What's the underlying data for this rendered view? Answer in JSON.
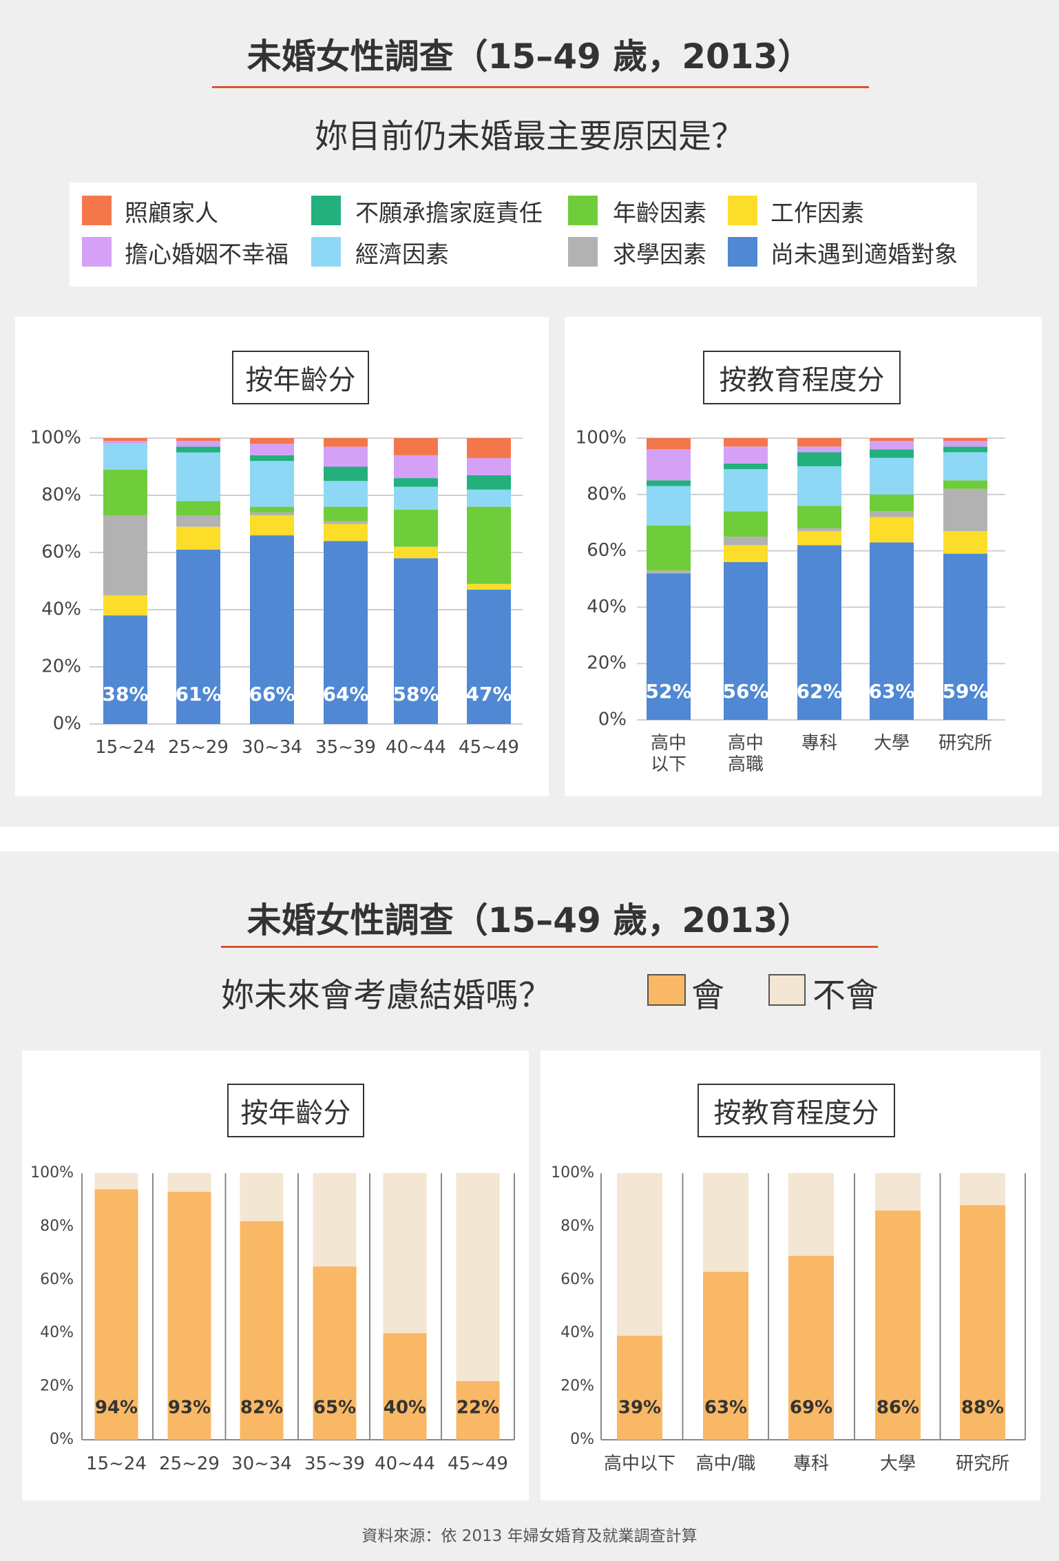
{
  "sections": [
    {
      "title": "未婚女性調查（15–49 歲，2013）",
      "question": "妳目前仍未婚最主要原因是？"
    },
    {
      "title": "未婚女性調查（15–49 歲，2013）",
      "question": "妳未來會考慮結婚嗎？"
    }
  ],
  "source": "資料來源：依 2013 年婦女婚育及就業調查計算",
  "chart_data": [
    {
      "type": "bar",
      "stacked": true,
      "title": "按年齡分",
      "categories": [
        "15~24",
        "25~29",
        "30~34",
        "35~39",
        "40~44",
        "45~49"
      ],
      "ylim": [
        0,
        100
      ],
      "yticks": [
        {
          "value": 0,
          "label": "0%"
        },
        {
          "value": 20,
          "label": "20%"
        },
        {
          "value": 40,
          "label": "40%"
        },
        {
          "value": 60,
          "label": "60%"
        },
        {
          "value": 80,
          "label": "80%"
        },
        {
          "value": 100,
          "label": "100%"
        }
      ],
      "grid": true,
      "series": [
        {
          "name": "尚未遇到適婚對象",
          "color": "#5088d3",
          "values": [
            38,
            61,
            66,
            64,
            58,
            47
          ],
          "value_labels": [
            "38%",
            "61%",
            "66%",
            "64%",
            "58%",
            "47%"
          ]
        },
        {
          "name": "工作因素",
          "color": "#fbdd2a",
          "values": [
            7,
            8,
            7,
            6,
            4,
            2
          ]
        },
        {
          "name": "求學因素",
          "color": "#b2b2b2",
          "values": [
            28,
            4,
            1,
            1,
            0,
            0
          ]
        },
        {
          "name": "年齡因素",
          "color": "#6fcc3a",
          "values": [
            16,
            5,
            2,
            5,
            13,
            27
          ]
        },
        {
          "name": "經濟因素",
          "color": "#8ed8f5",
          "values": [
            9,
            17,
            16,
            9,
            8,
            6
          ]
        },
        {
          "name": "不願承擔家庭責任",
          "color": "#23b07d",
          "values": [
            0,
            2,
            2,
            5,
            3,
            5
          ]
        },
        {
          "name": "擔心婚姻不幸福",
          "color": "#d4a1f7",
          "values": [
            1,
            2,
            4,
            7,
            8,
            6
          ]
        },
        {
          "name": "照顧家人",
          "color": "#f4774c",
          "values": [
            1,
            1,
            2,
            3,
            6,
            7
          ]
        }
      ]
    },
    {
      "type": "bar",
      "stacked": true,
      "title": "按教育程度分",
      "categories": [
        "高中\n以下",
        "高中\n高職",
        "專科",
        "大學",
        "研究所"
      ],
      "ylim": [
        0,
        100
      ],
      "yticks": [
        {
          "value": 0,
          "label": "0%"
        },
        {
          "value": 20,
          "label": "20%"
        },
        {
          "value": 40,
          "label": "40%"
        },
        {
          "value": 60,
          "label": "60%"
        },
        {
          "value": 80,
          "label": "80%"
        },
        {
          "value": 100,
          "label": "100%"
        }
      ],
      "grid": true,
      "series": [
        {
          "name": "尚未遇到適婚對象",
          "color": "#5088d3",
          "values": [
            52,
            56,
            62,
            63,
            59
          ],
          "value_labels": [
            "52%",
            "56%",
            "62%",
            "63%",
            "59%"
          ]
        },
        {
          "name": "工作因素",
          "color": "#fbdd2a",
          "values": [
            0,
            6,
            5,
            9,
            8
          ]
        },
        {
          "name": "求學因素",
          "color": "#b2b2b2",
          "values": [
            1,
            3,
            1,
            2,
            15
          ]
        },
        {
          "name": "年齡因素",
          "color": "#6fcc3a",
          "values": [
            16,
            9,
            8,
            6,
            3
          ]
        },
        {
          "name": "經濟因素",
          "color": "#8ed8f5",
          "values": [
            14,
            15,
            14,
            13,
            10
          ]
        },
        {
          "name": "不願承擔家庭責任",
          "color": "#23b07d",
          "values": [
            2,
            2,
            5,
            3,
            2
          ]
        },
        {
          "name": "擔心婚姻不幸福",
          "color": "#d4a1f7",
          "values": [
            11,
            6,
            2,
            3,
            2
          ]
        },
        {
          "name": "照顧家人",
          "color": "#f4774c",
          "values": [
            4,
            3,
            3,
            1,
            1
          ]
        }
      ]
    },
    {
      "type": "bar",
      "stacked": true,
      "title": "按年齡分",
      "categories": [
        "15~24",
        "25~29",
        "30~34",
        "35~39",
        "40~44",
        "45~49"
      ],
      "ylim": [
        0,
        100
      ],
      "yticks": [
        {
          "value": 0,
          "label": "0%"
        },
        {
          "value": 20,
          "label": "20%"
        },
        {
          "value": 40,
          "label": "40%"
        },
        {
          "value": 60,
          "label": "60%"
        },
        {
          "value": 80,
          "label": "80%"
        },
        {
          "value": 100,
          "label": "100%"
        }
      ],
      "grid": false,
      "series": [
        {
          "name": "會",
          "color": "#f8b865",
          "values": [
            94,
            93,
            82,
            65,
            40,
            22
          ],
          "value_labels": [
            "94%",
            "93%",
            "82%",
            "65%",
            "40%",
            "22%"
          ]
        },
        {
          "name": "不會",
          "color": "#f3e6d3",
          "values": [
            6,
            7,
            18,
            35,
            60,
            78
          ]
        }
      ]
    },
    {
      "type": "bar",
      "stacked": true,
      "title": "按教育程度分",
      "categories": [
        "高中以下",
        "高中/職",
        "專科",
        "大學",
        "研究所"
      ],
      "ylim": [
        0,
        100
      ],
      "yticks": [
        {
          "value": 0,
          "label": "0%"
        },
        {
          "value": 20,
          "label": "20%"
        },
        {
          "value": 40,
          "label": "40%"
        },
        {
          "value": 60,
          "label": "60%"
        },
        {
          "value": 80,
          "label": "80%"
        },
        {
          "value": 100,
          "label": "100%"
        }
      ],
      "grid": false,
      "series": [
        {
          "name": "會",
          "color": "#f8b865",
          "values": [
            39,
            63,
            69,
            86,
            88
          ],
          "value_labels": [
            "39%",
            "63%",
            "69%",
            "86%",
            "88%"
          ]
        },
        {
          "name": "不會",
          "color": "#f3e6d3",
          "values": [
            61,
            37,
            31,
            14,
            12
          ]
        }
      ]
    }
  ]
}
